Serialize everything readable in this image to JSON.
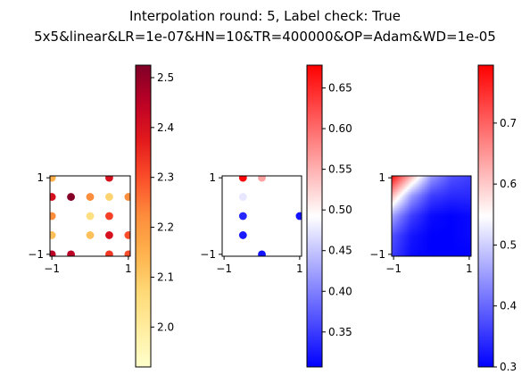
{
  "title_line1": "Interpolation round: 5, Label check: True",
  "title_line2": "5x5&linear&LR=1e-07&HN=10&TR=400000&OP=Adam&WD=1e-05",
  "chart_data": [
    {
      "type": "scatter",
      "colormap": "YlOrRd",
      "xlim": [
        -1.05,
        1.05
      ],
      "ylim": [
        -1.05,
        1.05
      ],
      "xticks": [
        -1,
        1
      ],
      "yticks": [
        -1,
        1
      ],
      "xtick_labels": [
        "−1",
        "1"
      ],
      "ytick_labels": [
        "−1",
        "1"
      ],
      "colorbar": {
        "range": [
          1.92,
          2.525
        ],
        "ticks": [
          2.0,
          2.1,
          2.2,
          2.3,
          2.4,
          2.5
        ],
        "tick_labels": [
          "2.0",
          "2.1",
          "2.2",
          "2.3",
          "2.4",
          "2.5"
        ]
      },
      "points": [
        {
          "x": -1.0,
          "y": 1.0,
          "v": 2.15
        },
        {
          "x": 0.5,
          "y": 1.0,
          "v": 2.4
        },
        {
          "x": -1.0,
          "y": 0.5,
          "v": 2.4
        },
        {
          "x": -0.5,
          "y": 0.5,
          "v": 2.52
        },
        {
          "x": 0.0,
          "y": 0.5,
          "v": 2.22
        },
        {
          "x": 0.5,
          "y": 0.5,
          "v": 2.08
        },
        {
          "x": 1.0,
          "y": 0.5,
          "v": 2.22
        },
        {
          "x": -1.0,
          "y": 0.0,
          "v": 2.22
        },
        {
          "x": 0.0,
          "y": 0.0,
          "v": 2.05
        },
        {
          "x": 0.5,
          "y": 0.0,
          "v": 2.32
        },
        {
          "x": -1.0,
          "y": -0.5,
          "v": 2.12
        },
        {
          "x": 0.0,
          "y": -0.5,
          "v": 2.12
        },
        {
          "x": 0.5,
          "y": -0.5,
          "v": 2.4
        },
        {
          "x": 1.0,
          "y": -0.5,
          "v": 2.3
        },
        {
          "x": -1.0,
          "y": -1.0,
          "v": 2.45
        },
        {
          "x": -0.5,
          "y": -1.0,
          "v": 2.45
        },
        {
          "x": 0.5,
          "y": -1.0,
          "v": 2.33
        },
        {
          "x": 1.0,
          "y": -1.0,
          "v": 2.3
        }
      ]
    },
    {
      "type": "scatter",
      "colormap": "bwr",
      "xlim": [
        -1.05,
        1.05
      ],
      "ylim": [
        -1.05,
        1.05
      ],
      "xticks": [
        -1,
        1
      ],
      "yticks": [
        -1,
        1
      ],
      "xtick_labels": [
        "−1",
        "1"
      ],
      "ytick_labels": [
        "−1",
        "1"
      ],
      "colorbar": {
        "range": [
          0.307,
          0.678
        ],
        "ticks": [
          0.35,
          0.4,
          0.45,
          0.5,
          0.55,
          0.6,
          0.65
        ],
        "tick_labels": [
          "0.35",
          "0.40",
          "0.45",
          "0.50",
          "0.55",
          "0.60",
          "0.65"
        ]
      },
      "points": [
        {
          "x": -0.5,
          "y": 1.0,
          "v": 0.675
        },
        {
          "x": 0.0,
          "y": 1.0,
          "v": 0.56
        },
        {
          "x": -0.5,
          "y": 0.5,
          "v": 0.475
        },
        {
          "x": -0.5,
          "y": 0.0,
          "v": 0.335
        },
        {
          "x": 1.0,
          "y": 0.0,
          "v": 0.32
        },
        {
          "x": -0.5,
          "y": -0.5,
          "v": 0.325
        },
        {
          "x": 0.0,
          "y": -1.0,
          "v": 0.32
        }
      ]
    },
    {
      "type": "heatmap",
      "colormap": "bwr",
      "xlim": [
        -1.05,
        1.05
      ],
      "ylim": [
        -1.05,
        1.05
      ],
      "xticks": [
        -1,
        1
      ],
      "yticks": [
        -1,
        1
      ],
      "xtick_labels": [
        "−1",
        "1"
      ],
      "ytick_labels": [
        "−1",
        "1"
      ],
      "colorbar": {
        "range": [
          0.3,
          0.795
        ],
        "ticks": [
          0.3,
          0.4,
          0.5,
          0.6,
          0.7
        ],
        "tick_labels": [
          "0.3",
          "0.4",
          "0.5",
          "0.6",
          "0.7"
        ]
      },
      "field": {
        "corners": {
          "top_left": 0.79,
          "top_right": 0.36,
          "bottom_left": 0.36,
          "bottom_right": 0.3
        },
        "sample": [
          [
            0.79,
            0.62,
            0.45,
            0.38,
            0.36
          ],
          [
            0.62,
            0.45,
            0.36,
            0.34,
            0.34
          ],
          [
            0.46,
            0.36,
            0.31,
            0.3,
            0.31
          ],
          [
            0.38,
            0.32,
            0.3,
            0.3,
            0.31
          ],
          [
            0.36,
            0.31,
            0.3,
            0.3,
            0.3
          ]
        ]
      }
    }
  ]
}
